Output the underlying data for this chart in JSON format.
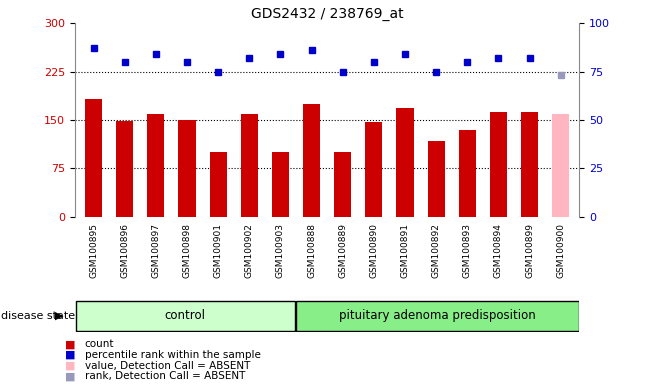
{
  "title": "GDS2432 / 238769_at",
  "samples": [
    "GSM100895",
    "GSM100896",
    "GSM100897",
    "GSM100898",
    "GSM100901",
    "GSM100902",
    "GSM100903",
    "GSM100888",
    "GSM100889",
    "GSM100890",
    "GSM100891",
    "GSM100892",
    "GSM100893",
    "GSM100894",
    "GSM100899",
    "GSM100900"
  ],
  "bar_values": [
    182,
    148,
    160,
    150,
    100,
    160,
    100,
    175,
    100,
    147,
    168,
    118,
    135,
    162,
    162,
    160
  ],
  "bar_colors": [
    "#cc0000",
    "#cc0000",
    "#cc0000",
    "#cc0000",
    "#cc0000",
    "#cc0000",
    "#cc0000",
    "#cc0000",
    "#cc0000",
    "#cc0000",
    "#cc0000",
    "#cc0000",
    "#cc0000",
    "#cc0000",
    "#cc0000",
    "#ffb6c1"
  ],
  "rank_values": [
    87,
    80,
    84,
    80,
    75,
    82,
    84,
    86,
    75,
    80,
    84,
    75,
    80,
    82,
    82,
    73
  ],
  "rank_colors": [
    "#0000cc",
    "#0000cc",
    "#0000cc",
    "#0000cc",
    "#0000cc",
    "#0000cc",
    "#0000cc",
    "#0000cc",
    "#0000cc",
    "#0000cc",
    "#0000cc",
    "#0000cc",
    "#0000cc",
    "#0000cc",
    "#0000cc",
    "#9999bb"
  ],
  "group_labels": [
    "control",
    "pituitary adenoma predisposition"
  ],
  "group_split": 7,
  "group_colors_ctrl": "#ccffcc",
  "group_colors_pitu": "#88ee88",
  "ylim_left": [
    0,
    300
  ],
  "ylim_right": [
    0,
    100
  ],
  "yticks_left": [
    0,
    75,
    150,
    225,
    300
  ],
  "yticks_right": [
    0,
    25,
    50,
    75,
    100
  ],
  "hlines": [
    75,
    150,
    225
  ],
  "ylabel_left_color": "#cc0000",
  "ylabel_right_color": "#0000cc",
  "bg_color": "#ffffff",
  "legend_items": [
    {
      "label": "count",
      "color": "#cc0000"
    },
    {
      "label": "percentile rank within the sample",
      "color": "#0000cc"
    },
    {
      "label": "value, Detection Call = ABSENT",
      "color": "#ffb6c1"
    },
    {
      "label": "rank, Detection Call = ABSENT",
      "color": "#9999bb"
    }
  ],
  "disease_state_label": "disease state",
  "bar_width": 0.55
}
